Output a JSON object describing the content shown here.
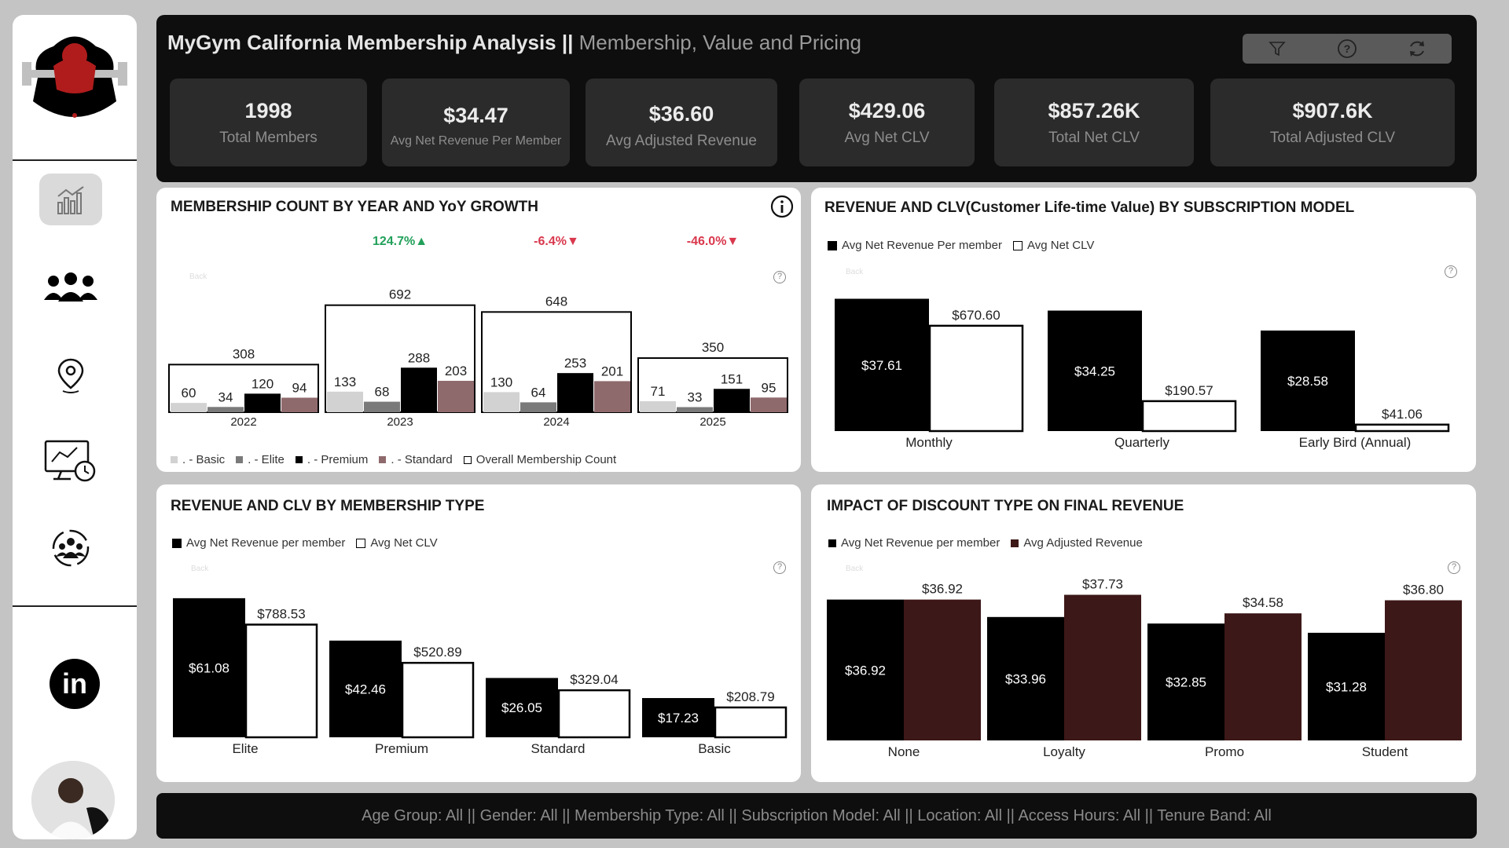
{
  "header": {
    "title_main": "MyGym California Membership Analysis ||",
    "title_sub": "Membership, Value and Pricing"
  },
  "toolbar": {
    "icons": [
      "filter-icon",
      "help-icon",
      "refresh-icon"
    ]
  },
  "kpis": [
    {
      "value": "1998",
      "label": "Total Members"
    },
    {
      "value": "$34.47",
      "label": "Avg Net Revenue Per Member"
    },
    {
      "value": "$36.60",
      "label": "Avg Adjusted Revenue"
    },
    {
      "value": "$429.06",
      "label": "Avg Net CLV"
    },
    {
      "value": "$857.26K",
      "label": "Total Net CLV"
    },
    {
      "value": "$907.6K",
      "label": "Total Adjusted CLV"
    }
  ],
  "sidebar": {
    "items": [
      "analytics-chart-icon",
      "members-group-icon",
      "location-pin-icon",
      "dashboard-monitor-icon",
      "team-circle-icon"
    ],
    "linkedin_label": "in"
  },
  "panels": {
    "membership": {
      "title": "MEMBERSHIP COUNT BY YEAR AND YoY GROWTH",
      "back_label": "Back",
      "legend": [
        ". - Basic",
        ". - Elite",
        ". - Premium",
        ". - Standard",
        "Overall Membership Count"
      ]
    },
    "subscription": {
      "title": "REVENUE AND  CLV(Customer Life-time Value) BY SUBSCRIPTION MODEL",
      "back_label": "Back",
      "legend": [
        "Avg Net Revenue Per member",
        "Avg Net CLV"
      ]
    },
    "membership_type": {
      "title": "REVENUE AND CLV BY MEMBERSHIP TYPE",
      "back_label": "Back",
      "legend": [
        "Avg Net Revenue per member",
        "Avg Net CLV"
      ]
    },
    "discount": {
      "title": "IMPACT OF DISCOUNT TYPE ON FINAL REVENUE",
      "back_label": "Back",
      "legend": [
        "Avg Net Revenue per member",
        "Avg Adjusted Revenue"
      ]
    }
  },
  "footer": {
    "filters": "Age Group: All || Gender: All || Membership Type: All || Subscription Model: All || Location: All || Access Hours: All || Tenure Band: All"
  },
  "colors": {
    "basic": "#d2d2d2",
    "elite": "#7a7a7a",
    "premium": "#000000",
    "standard": "#8f6a6d",
    "adjusted": "#3d1818",
    "growth_up": "#22a05a",
    "growth_down": "#d9384d"
  },
  "chart_data": [
    {
      "type": "bar",
      "title": "MEMBERSHIP COUNT BY YEAR AND YoY GROWTH",
      "categories": [
        "2022",
        "2023",
        "2024",
        "2025"
      ],
      "series": [
        {
          "name": "Basic",
          "values": [
            60,
            133,
            130,
            71
          ]
        },
        {
          "name": "Elite",
          "values": [
            34,
            68,
            64,
            33
          ]
        },
        {
          "name": "Premium",
          "values": [
            120,
            288,
            253,
            151
          ]
        },
        {
          "name": "Standard",
          "values": [
            94,
            203,
            201,
            95
          ]
        },
        {
          "name": "Overall Membership Count",
          "values": [
            308,
            692,
            648,
            350
          ]
        }
      ],
      "yoy_growth": [
        "",
        "124.7%▲",
        "-6.4%▼",
        "-46.0%▼"
      ],
      "yoy_direction": [
        "",
        "up",
        "down",
        "down"
      ]
    },
    {
      "type": "bar",
      "title": "REVENUE AND  CLV(Customer Life-time Value) BY SUBSCRIPTION MODEL",
      "categories": [
        "Monthly",
        "Quarterly",
        "Early Bird (Annual)"
      ],
      "series": [
        {
          "name": "Avg Net Revenue Per member",
          "values": [
            37.61,
            34.25,
            28.58
          ],
          "labels": [
            "$37.61",
            "$34.25",
            "$28.58"
          ]
        },
        {
          "name": "Avg Net CLV",
          "values": [
            670.6,
            190.57,
            41.06
          ],
          "labels": [
            "$670.60",
            "$190.57",
            "$41.06"
          ]
        }
      ]
    },
    {
      "type": "bar",
      "title": "REVENUE AND CLV BY MEMBERSHIP TYPE",
      "categories": [
        "Elite",
        "Premium",
        "Standard",
        "Basic"
      ],
      "series": [
        {
          "name": "Avg Net Revenue per member",
          "values": [
            61.08,
            42.46,
            26.05,
            17.23
          ],
          "labels": [
            "$61.08",
            "$42.46",
            "$26.05",
            "$17.23"
          ]
        },
        {
          "name": "Avg Net CLV",
          "values": [
            788.53,
            520.89,
            329.04,
            208.79
          ],
          "labels": [
            "$788.53",
            "$520.89",
            "$329.04",
            "$208.79"
          ]
        }
      ]
    },
    {
      "type": "bar",
      "title": "IMPACT OF DISCOUNT TYPE ON FINAL REVENUE",
      "categories": [
        "None",
        "Loyalty",
        "Promo",
        "Student"
      ],
      "series": [
        {
          "name": "Avg Net Revenue per member",
          "values": [
            36.92,
            33.96,
            32.85,
            31.28
          ],
          "labels": [
            "$36.92",
            "$33.96",
            "$32.85",
            "$31.28"
          ]
        },
        {
          "name": "Avg Adjusted Revenue",
          "values": [
            36.92,
            37.73,
            34.58,
            36.8
          ],
          "labels": [
            "$36.92",
            "$37.73",
            "$34.58",
            "$36.80"
          ]
        }
      ]
    }
  ]
}
